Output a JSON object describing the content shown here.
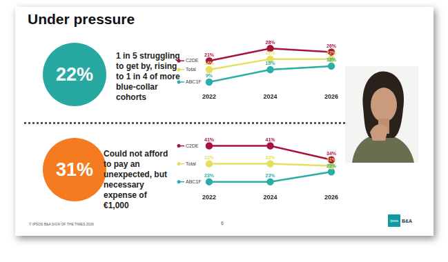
{
  "title": "Under pressure",
  "panels": [
    {
      "stat": "22%",
      "color": "#27a9a1",
      "text": "1 in 5 struggling to get by, rising to 1 in 4 of more blue-collar cohorts"
    },
    {
      "stat": "31%",
      "color": "#f47b20",
      "text": "Could not afford to pay an unexpected, but necessary expense of €1,000"
    }
  ],
  "chart_data": [
    {
      "type": "line",
      "categories": [
        "2022",
        "2024",
        "2026"
      ],
      "series": [
        {
          "name": "C2DE",
          "color": "#a8123e",
          "values": [
            21,
            28,
            26
          ],
          "value_labels": [
            "21%",
            "28%",
            "26%"
          ]
        },
        {
          "name": "Total",
          "color": "#e6df5c",
          "values": [
            16,
            22,
            22
          ],
          "value_labels": [
            "16%",
            "22%",
            "22%"
          ]
        },
        {
          "name": "ABC1F",
          "color": "#2aaea7",
          "values": [
            9,
            16,
            18
          ],
          "value_labels": [
            "9%",
            "16%",
            "18%"
          ]
        }
      ],
      "ylim": [
        5,
        32
      ],
      "grid": false,
      "data_labels": true,
      "tick_labels": "x",
      "marker": "circle"
    },
    {
      "type": "line",
      "categories": [
        "2022",
        "2024",
        "2026"
      ],
      "series": [
        {
          "name": "C2DE",
          "color": "#a8123e",
          "values": [
            41,
            41,
            34
          ],
          "value_labels": [
            "41%",
            "41%",
            "34%"
          ]
        },
        {
          "name": "Total",
          "color": "#e6df5c",
          "values": [
            32,
            32,
            31
          ],
          "value_labels": [
            "32%",
            "32%",
            "31%"
          ]
        },
        {
          "name": "ABC1F",
          "color": "#2aaea7",
          "values": [
            23,
            23,
            28
          ],
          "value_labels": [
            "23%",
            "23%",
            "28%"
          ]
        }
      ],
      "ylim": [
        19,
        45
      ],
      "grid": false,
      "data_labels": true,
      "tick_labels": "x",
      "marker": "circle"
    }
  ],
  "footer": "© IPSOS B&A SIGN OF THE TIMES 2026",
  "page": "6",
  "logo": [
    "Ipsos",
    "B&A"
  ]
}
